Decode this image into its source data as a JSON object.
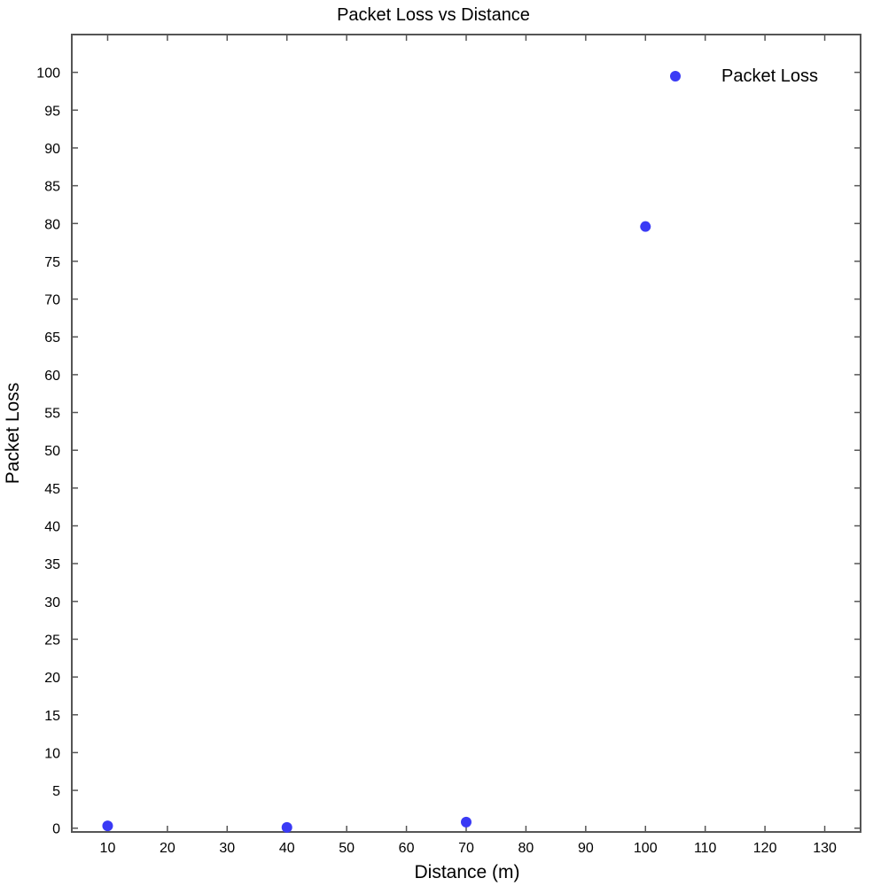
{
  "chart_data": {
    "type": "scatter",
    "title": "Packet Loss vs Distance",
    "xlabel": "Distance (m)",
    "ylabel": "Packet Loss",
    "xlim": [
      4,
      136
    ],
    "ylim": [
      -0.5,
      105
    ],
    "xticks": [
      10,
      20,
      30,
      40,
      50,
      60,
      70,
      80,
      90,
      100,
      110,
      120,
      130
    ],
    "yticks": [
      0,
      5,
      10,
      15,
      20,
      25,
      30,
      35,
      40,
      45,
      50,
      55,
      60,
      65,
      70,
      75,
      80,
      85,
      90,
      95,
      100
    ],
    "grid": false,
    "legend_position": "top-right",
    "series": [
      {
        "name": "Packet Loss",
        "color": "#3a3af5",
        "x": [
          10,
          40,
          70,
          100
        ],
        "y": [
          0.3,
          0.1,
          0.8,
          79.6
        ]
      }
    ]
  }
}
